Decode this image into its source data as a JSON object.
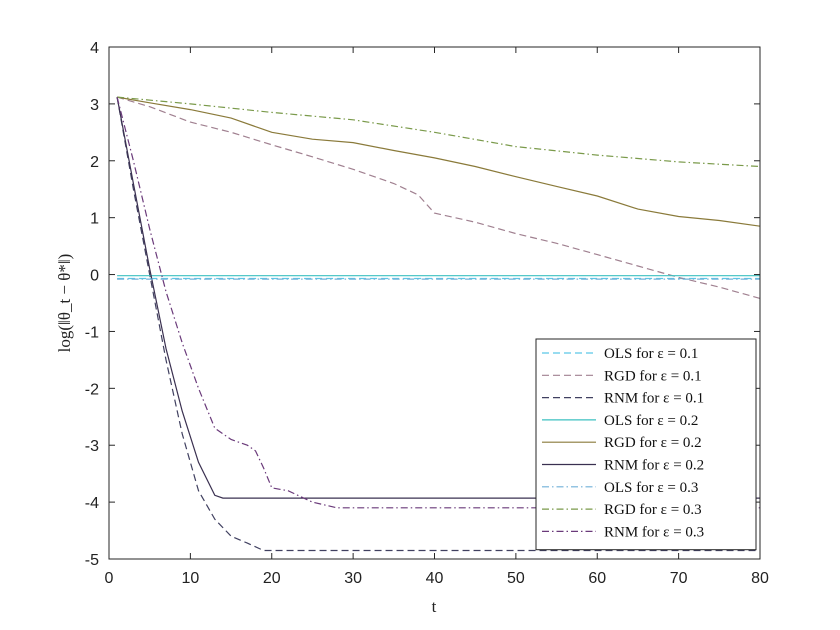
{
  "chart_data": {
    "type": "line",
    "xlabel": "t",
    "ylabel": "log(‖θ_t − θ*‖)",
    "xlim": [
      0,
      80
    ],
    "ylim": [
      -5,
      4
    ],
    "xticks": [
      0,
      10,
      20,
      30,
      40,
      50,
      60,
      70,
      80
    ],
    "yticks": [
      -5,
      -4,
      -3,
      -2,
      -1,
      0,
      1,
      2,
      3,
      4
    ],
    "grid": false,
    "legend_position": "bottom-right",
    "series": [
      {
        "name": "OLS for ε = 0.1",
        "color": "#5bc8e8",
        "dash": "dashed",
        "x": [
          1,
          80
        ],
        "y": [
          -0.07,
          -0.07
        ]
      },
      {
        "name": "RGD for ε = 0.1",
        "color": "#a08090",
        "dash": "dashed",
        "x": [
          1,
          5,
          10,
          15,
          20,
          25,
          30,
          35,
          38,
          40,
          45,
          50,
          55,
          60,
          65,
          70,
          75,
          80
        ],
        "y": [
          3.12,
          2.95,
          2.68,
          2.5,
          2.28,
          2.07,
          1.85,
          1.6,
          1.4,
          1.08,
          0.92,
          0.72,
          0.55,
          0.35,
          0.15,
          -0.05,
          -0.22,
          -0.42
        ]
      },
      {
        "name": "RNM for ε = 0.1",
        "color": "#404060",
        "dash": "dashed",
        "x": [
          1,
          3,
          5,
          7,
          9,
          11,
          13,
          15,
          17,
          19,
          20,
          80
        ],
        "y": [
          3.12,
          1.5,
          0.0,
          -1.5,
          -2.8,
          -3.8,
          -4.3,
          -4.6,
          -4.72,
          -4.85,
          -4.85,
          -4.85
        ]
      },
      {
        "name": "OLS for ε = 0.2",
        "color": "#3cc0c0",
        "dash": "solid",
        "x": [
          1,
          80
        ],
        "y": [
          -0.02,
          -0.02
        ]
      },
      {
        "name": "RGD for ε = 0.2",
        "color": "#8a7a3a",
        "dash": "solid",
        "x": [
          1,
          5,
          10,
          15,
          20,
          25,
          30,
          35,
          40,
          45,
          50,
          55,
          60,
          65,
          70,
          75,
          80
        ],
        "y": [
          3.12,
          3.02,
          2.9,
          2.75,
          2.5,
          2.38,
          2.32,
          2.18,
          2.05,
          1.9,
          1.72,
          1.55,
          1.38,
          1.15,
          1.02,
          0.95,
          0.85
        ]
      },
      {
        "name": "RNM for ε = 0.2",
        "color": "#3a3050",
        "dash": "solid",
        "x": [
          1,
          3,
          5,
          7,
          9,
          11,
          13,
          14,
          80
        ],
        "y": [
          3.12,
          1.6,
          0.1,
          -1.3,
          -2.4,
          -3.3,
          -3.88,
          -3.93,
          -3.93
        ]
      },
      {
        "name": "OLS for ε = 0.3",
        "color": "#70b0d8",
        "dash": "dashdot",
        "x": [
          1,
          80
        ],
        "y": [
          -0.08,
          -0.08
        ]
      },
      {
        "name": "RGD for ε = 0.3",
        "color": "#7a9a4a",
        "dash": "dashdot",
        "x": [
          1,
          10,
          20,
          30,
          40,
          50,
          60,
          70,
          80
        ],
        "y": [
          3.12,
          3.0,
          2.85,
          2.72,
          2.5,
          2.25,
          2.1,
          1.98,
          1.9
        ]
      },
      {
        "name": "RNM for ε = 0.3",
        "color": "#6a3a7a",
        "dash": "dashdot",
        "x": [
          1,
          3,
          5,
          7,
          9,
          11,
          13,
          15,
          17,
          18,
          19,
          20,
          22,
          25,
          28,
          80
        ],
        "y": [
          3.12,
          2.0,
          0.8,
          -0.3,
          -1.2,
          -2.0,
          -2.7,
          -2.9,
          -3.0,
          -3.1,
          -3.4,
          -3.75,
          -3.8,
          -4.0,
          -4.1,
          -4.1
        ]
      }
    ]
  }
}
